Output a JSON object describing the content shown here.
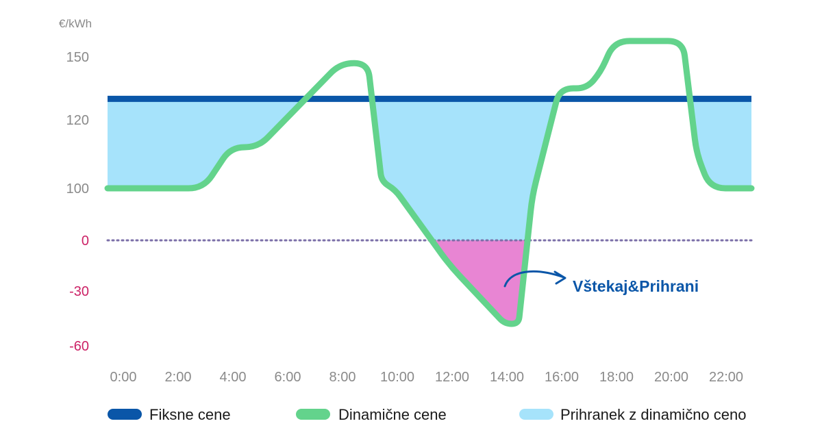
{
  "chart_data": {
    "type": "line",
    "unit_label": "€/kWh",
    "y_ticks": [
      {
        "value": "150",
        "positive": true
      },
      {
        "value": "120",
        "positive": true
      },
      {
        "value": "100",
        "positive": true
      },
      {
        "value": "0",
        "positive": false
      },
      {
        "value": "-30",
        "positive": false
      },
      {
        "value": "-60",
        "positive": false
      }
    ],
    "x_ticks": [
      "0:00",
      "2:00",
      "4:00",
      "6:00",
      "8:00",
      "10:00",
      "12:00",
      "14:00",
      "16:00",
      "18:00",
      "20:00",
      "22:00"
    ],
    "fixed_price": 130,
    "dynamic_price": {
      "hours": [
        0,
        3.5,
        4.5,
        5.5,
        8.5,
        9.5,
        10,
        10.5,
        12.5,
        14.5,
        15,
        15.5,
        16.5,
        17.5,
        18,
        18.5,
        21,
        21.5,
        22,
        23.5
      ],
      "values": [
        100,
        100,
        112,
        112,
        147,
        147,
        102,
        97,
        -15,
        -48,
        -48,
        85,
        135,
        135,
        143,
        157,
        157,
        110,
        100,
        100
      ]
    },
    "series": [
      {
        "name": "Fiksne cene",
        "color": "#0a56a8"
      },
      {
        "name": "Dinamične cene",
        "color": "#63d38c"
      },
      {
        "name": "Prihranek z dinamično ceno",
        "color": "#a6e3fb"
      }
    ],
    "negative_fill_color": "#e885d3",
    "zero_line_color": "#7b6fa8",
    "positive_tick_color": "#8a8a8a",
    "negative_tick_color": "#cc2266",
    "annotation": {
      "text": "Vštekaj&Prihrani",
      "color": "#0a56a8"
    }
  }
}
